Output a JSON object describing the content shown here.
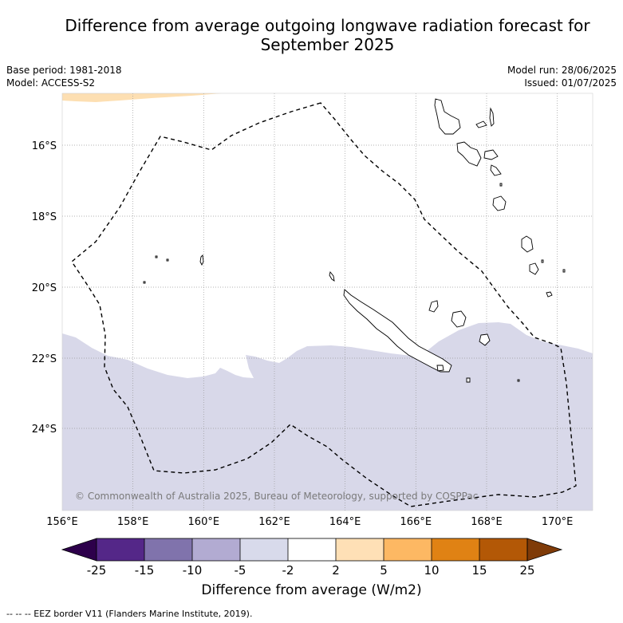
{
  "title": {
    "line1": "Difference from average outgoing longwave radiation forecast for",
    "line2": "September 2025"
  },
  "meta_left": {
    "base_period": "Base period: 1981-2018",
    "model": "Model: ACCESS-S2"
  },
  "meta_right": {
    "model_run": "Model run: 28/06/2025",
    "issued": "Issued: 01/07/2025"
  },
  "map": {
    "lon_range": [
      156,
      171
    ],
    "lat_range": [
      -26.3,
      -14.6
    ],
    "lon_ticks": [
      "156°E",
      "158°E",
      "160°E",
      "162°E",
      "164°E",
      "166°E",
      "168°E",
      "170°E"
    ],
    "lat_ticks": [
      "16°S",
      "18°S",
      "20°S",
      "22°S",
      "24°S"
    ],
    "copyright": "© Commonwealth of Australia 2025, Bureau of Meteorology, supported by COSPPac",
    "anomaly_fill_color": "#d8d8e9",
    "positive_fill_color": "#fde0b6"
  },
  "colorbar": {
    "tick_labels": [
      "-25",
      "-15",
      "-10",
      "-5",
      "-2",
      "2",
      "5",
      "10",
      "15",
      "25"
    ],
    "colors": [
      "#2d004b",
      "#542788",
      "#8073ac",
      "#b2abd2",
      "#d8daeb",
      "#ffffff",
      "#fee0b6",
      "#fdb863",
      "#e08214",
      "#b35806",
      "#7f3b08"
    ],
    "label": "Difference from average (W/m2)"
  },
  "footnote": "-- -- -- EEZ border V11 (Flanders Marine Institute, 2019)."
}
